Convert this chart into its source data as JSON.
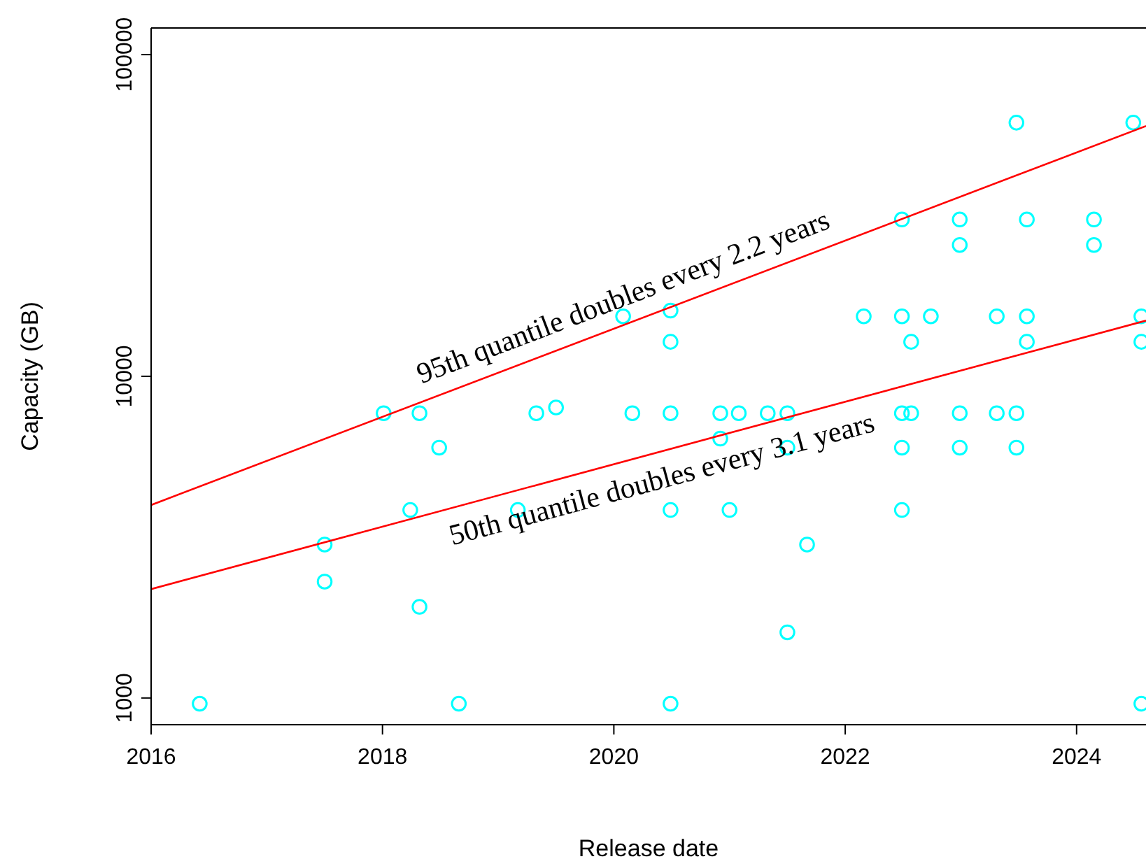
{
  "chart_data": {
    "type": "scatter",
    "xlabel": "Release date",
    "ylabel": "Capacity (GB)",
    "log": "y",
    "grid": false,
    "xlim": [
      2016,
      2024.6
    ],
    "ylim": [
      826,
      121000
    ],
    "xticks": [
      2016,
      2018,
      2020,
      2022,
      2024
    ],
    "yticks": [
      1000,
      10000,
      100000
    ],
    "series": [
      {
        "marker": "circle",
        "color": "#00ffff",
        "x": [
          2016.42,
          2017.5,
          2017.5,
          2018.01,
          2018.24,
          2018.32,
          2018.32,
          2018.49,
          2018.66,
          2019.17,
          2019.33,
          2019.5,
          2020.08,
          2020.16,
          2020.49,
          2020.49,
          2020.49,
          2020.49,
          2020.49,
          2020.92,
          2020.92,
          2021.0,
          2021.08,
          2021.33,
          2021.5,
          2021.5,
          2021.5,
          2021.67,
          2022.16,
          2022.49,
          2022.49,
          2022.49,
          2022.49,
          2022.49,
          2022.57,
          2022.57,
          2022.74,
          2022.99,
          2022.99,
          2022.99,
          2022.99,
          2023.31,
          2023.31,
          2023.48,
          2023.48,
          2023.48,
          2023.57,
          2023.57,
          2023.57,
          2024.15,
          2024.15,
          2024.49,
          2024.56,
          2024.56,
          2024.56
        ],
        "values": [
          960,
          3000,
          2300,
          7680,
          3840,
          7680,
          1920,
          6000,
          960,
          3840,
          7680,
          8000,
          15360,
          7680,
          16000,
          12800,
          7680,
          3840,
          960,
          7680,
          6400,
          3840,
          7680,
          7680,
          7680,
          6000,
          1600,
          3000,
          15360,
          30720,
          15360,
          7680,
          6000,
          3840,
          12800,
          7680,
          15360,
          30720,
          25600,
          7680,
          6000,
          15360,
          7680,
          61440,
          7680,
          6000,
          30720,
          15360,
          12800,
          30720,
          25600,
          61440,
          15360,
          12800,
          960
        ]
      },
      {
        "type": "line",
        "color": "#ff0000",
        "x": [
          2016,
          2024.6
        ],
        "values": [
          3980,
          60000
        ]
      },
      {
        "type": "line",
        "color": "#ff0000",
        "x": [
          2016,
          2024.6
        ],
        "values": [
          2180,
          14900
        ]
      }
    ],
    "annotations": [
      "95th quantile doubles every 2.2 years",
      "50th quantile doubles every 3.1 years"
    ]
  }
}
